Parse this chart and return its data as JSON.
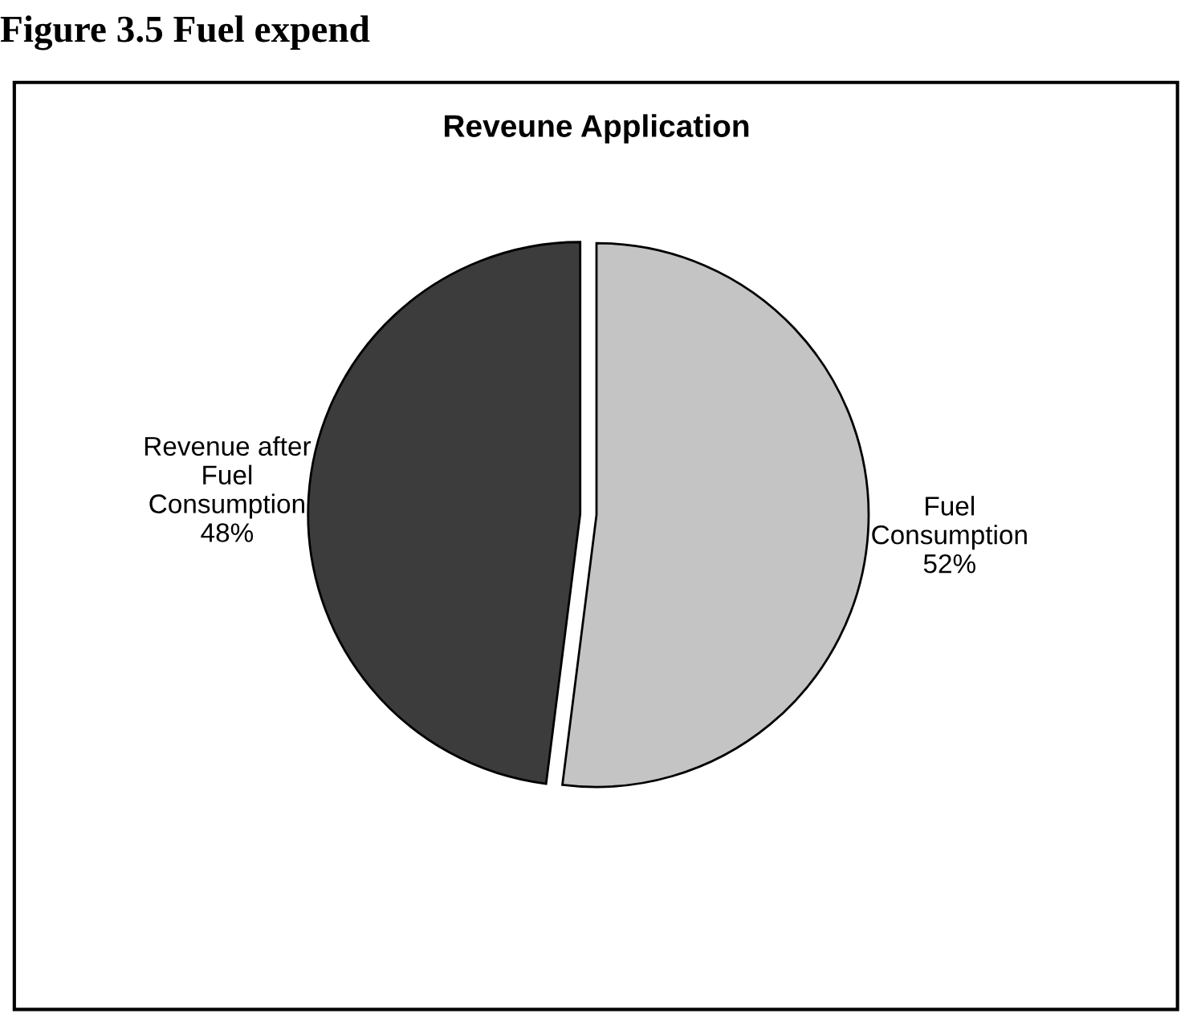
{
  "chart_data": {
    "type": "pie",
    "title": "Reveune Application",
    "categories": [
      "Fuel\nConsumption",
      "Revenue after\nFuel\nConsumption"
    ],
    "values": [
      52,
      48
    ],
    "colors": [
      "#c4c4c4",
      "#3c3c3c"
    ],
    "value_labels": [
      "52%",
      "48%"
    ],
    "annotations": [
      "Figure 3.5 Fuel expend"
    ]
  }
}
